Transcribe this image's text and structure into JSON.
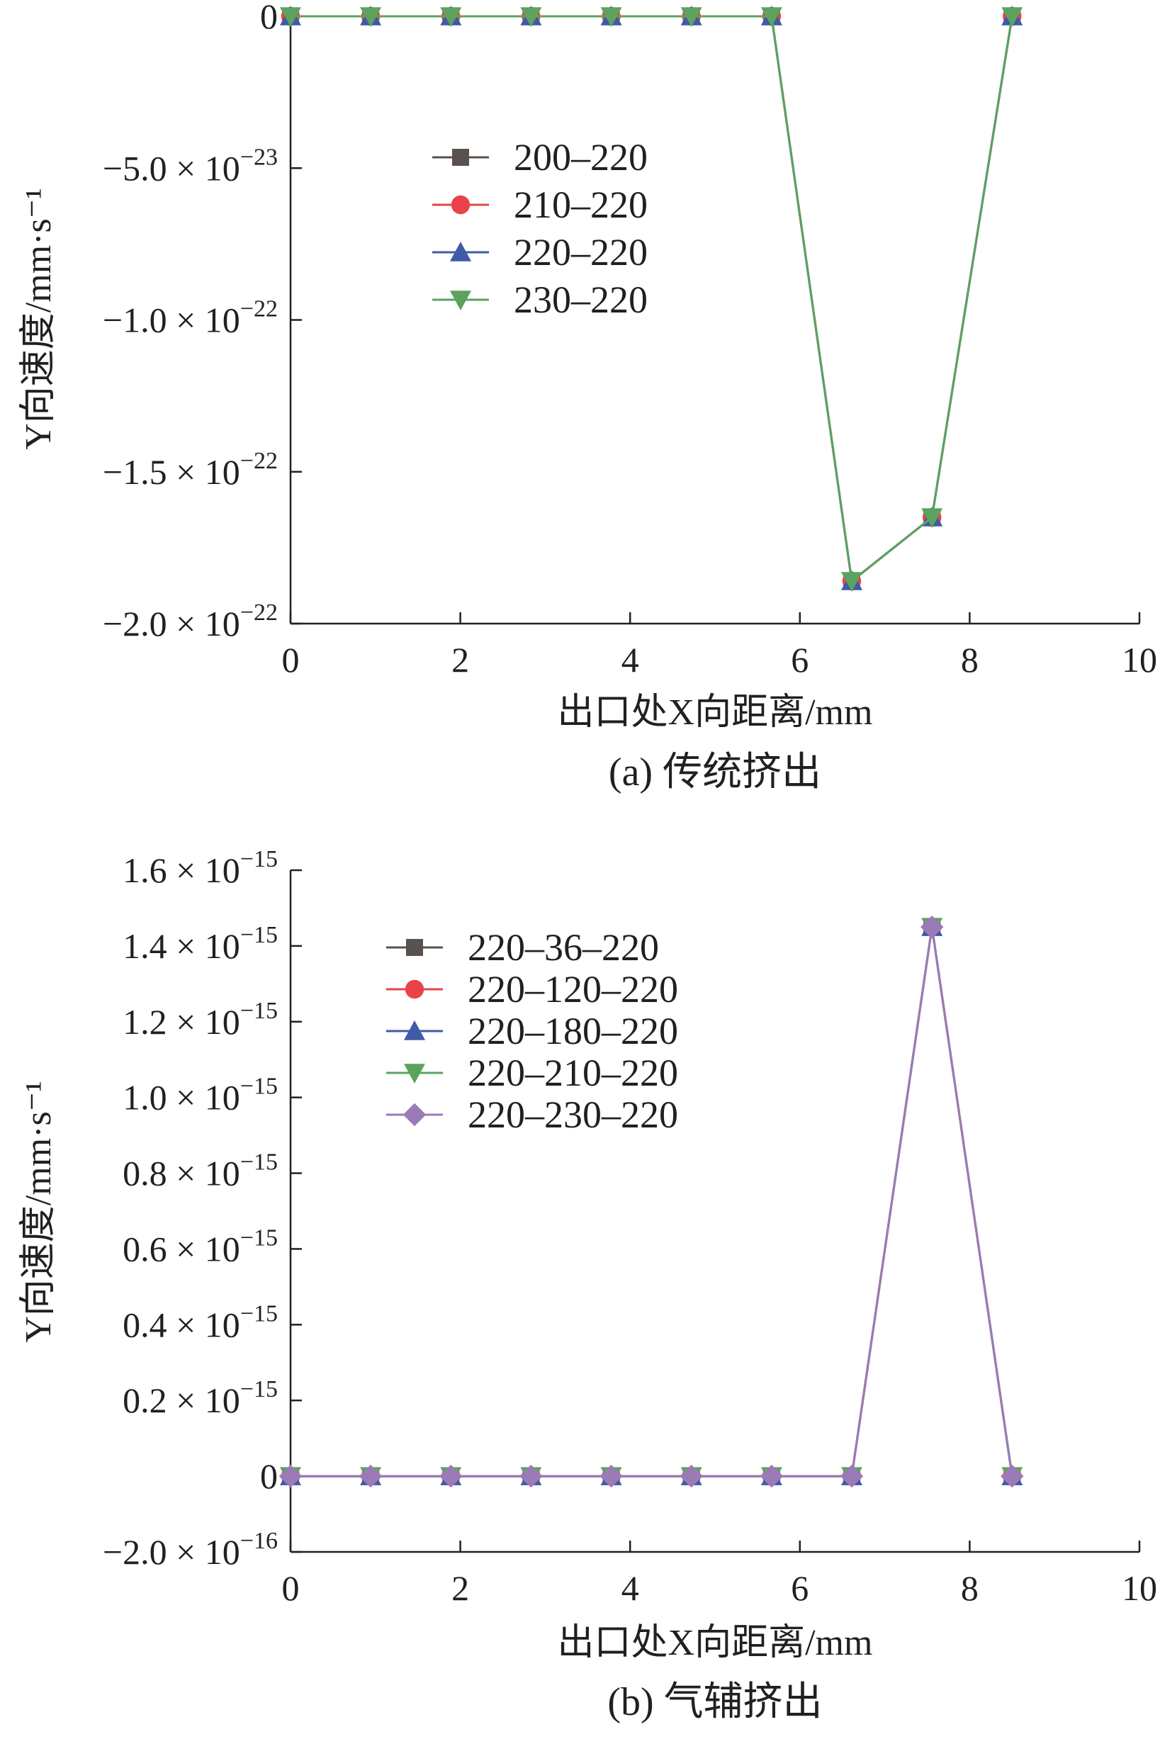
{
  "chart_data": [
    {
      "type": "line",
      "caption": "(a) 传统挤出",
      "xlabel": "出口处X向距离/mm",
      "ylabel": "Y向速度/mm·s⁻¹",
      "xlim": [
        0,
        10
      ],
      "ylim": [
        -2e-22,
        0
      ],
      "grid": false,
      "legend_position": "upper-left",
      "x_ticks": [
        0,
        2,
        4,
        6,
        8,
        10
      ],
      "x_tick_labels": [
        "0",
        "2",
        "4",
        "6",
        "8",
        "10"
      ],
      "y_ticks": [
        {
          "value": 0,
          "mantissa": "0",
          "exponent": ""
        },
        {
          "value": -5e-23,
          "mantissa": "−5.0 × 10",
          "exponent": "−23"
        },
        {
          "value": -1e-22,
          "mantissa": "−1.0 × 10",
          "exponent": "−22"
        },
        {
          "value": -1.5e-22,
          "mantissa": "−1.5 × 10",
          "exponent": "−22"
        },
        {
          "value": -2e-22,
          "mantissa": "−2.0 × 10",
          "exponent": "−22"
        }
      ],
      "x": [
        0,
        0.944,
        1.889,
        2.833,
        3.778,
        4.722,
        5.667,
        6.611,
        7.556,
        8.5
      ],
      "series": [
        {
          "name": "200–220",
          "color": "#59514d",
          "marker": "square",
          "values": [
            0,
            0,
            0,
            0,
            0,
            0,
            0,
            -1.86e-22,
            -1.65e-22,
            0
          ]
        },
        {
          "name": "210–220",
          "color": "#e8434b",
          "marker": "circle",
          "values": [
            0,
            0,
            0,
            0,
            0,
            0,
            0,
            -1.86e-22,
            -1.65e-22,
            0
          ]
        },
        {
          "name": "220–220",
          "color": "#3f5aa6",
          "marker": "triangle-up",
          "values": [
            0,
            0,
            0,
            0,
            0,
            0,
            0,
            -1.86e-22,
            -1.65e-22,
            0
          ]
        },
        {
          "name": "230–220",
          "color": "#5ba35f",
          "marker": "triangle-down",
          "values": [
            0,
            0,
            0,
            0,
            0,
            0,
            0,
            -1.86e-22,
            -1.65e-22,
            0
          ]
        }
      ]
    },
    {
      "type": "line",
      "caption": "(b) 气辅挤出",
      "xlabel": "出口处X向距离/mm",
      "ylabel": "Y向速度/mm·s⁻¹",
      "xlim": [
        0,
        10
      ],
      "ylim": [
        -2e-16,
        1.6e-15
      ],
      "grid": false,
      "legend_position": "upper-left",
      "x_ticks": [
        0,
        2,
        4,
        6,
        8,
        10
      ],
      "x_tick_labels": [
        "0",
        "2",
        "4",
        "6",
        "8",
        "10"
      ],
      "y_ticks": [
        {
          "value": 1.6e-15,
          "mantissa": "1.6 × 10",
          "exponent": "−15"
        },
        {
          "value": 1.4e-15,
          "mantissa": "1.4 × 10",
          "exponent": "−15"
        },
        {
          "value": 1.2e-15,
          "mantissa": "1.2 × 10",
          "exponent": "−15"
        },
        {
          "value": 1e-15,
          "mantissa": "1.0 × 10",
          "exponent": "−15"
        },
        {
          "value": 8e-16,
          "mantissa": "0.8 × 10",
          "exponent": "−15"
        },
        {
          "value": 6e-16,
          "mantissa": "0.6 × 10",
          "exponent": "−15"
        },
        {
          "value": 4e-16,
          "mantissa": "0.4 × 10",
          "exponent": "−15"
        },
        {
          "value": 2e-16,
          "mantissa": "0.2 × 10",
          "exponent": "−15"
        },
        {
          "value": 0,
          "mantissa": "0",
          "exponent": ""
        },
        {
          "value": -2e-16,
          "mantissa": "−2.0 × 10",
          "exponent": "−16"
        }
      ],
      "x": [
        0,
        0.944,
        1.889,
        2.833,
        3.778,
        4.722,
        5.667,
        6.611,
        7.556,
        8.5
      ],
      "series": [
        {
          "name": "220–36–220",
          "color": "#59514d",
          "marker": "square",
          "values": [
            0,
            0,
            0,
            0,
            0,
            0,
            0,
            0,
            1.45e-15,
            0
          ]
        },
        {
          "name": "220–120–220",
          "color": "#e8434b",
          "marker": "circle",
          "values": [
            0,
            0,
            0,
            0,
            0,
            0,
            0,
            0,
            1.45e-15,
            0
          ]
        },
        {
          "name": "220–180–220",
          "color": "#3f5aa6",
          "marker": "triangle-up",
          "values": [
            0,
            0,
            0,
            0,
            0,
            0,
            0,
            0,
            1.45e-15,
            0
          ]
        },
        {
          "name": "220–210–220",
          "color": "#5ba35f",
          "marker": "triangle-down",
          "values": [
            0,
            0,
            0,
            0,
            0,
            0,
            0,
            0,
            1.45e-15,
            0
          ]
        },
        {
          "name": "220–230–220",
          "color": "#9b7ab8",
          "marker": "diamond",
          "values": [
            0,
            0,
            0,
            0,
            0,
            0,
            0,
            0,
            1.45e-15,
            0
          ]
        }
      ]
    }
  ]
}
